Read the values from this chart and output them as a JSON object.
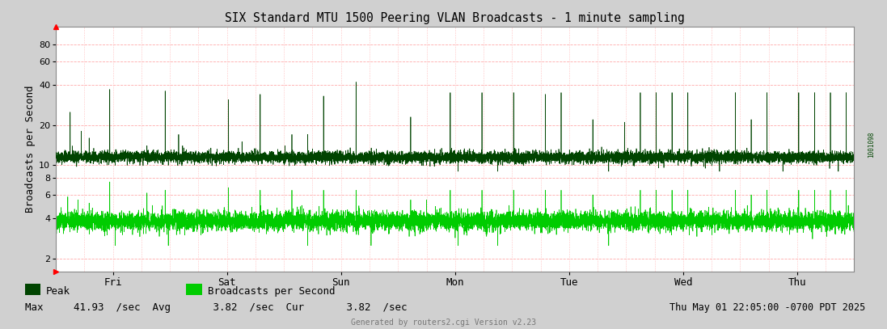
{
  "title": "SIX Standard MTU 1500 Peering VLAN Broadcasts - 1 minute sampling",
  "ylabel": "Broadcasts per Second",
  "fig_bg": "#d0d0d0",
  "plot_bg": "#ffffff",
  "peak_color": "#004400",
  "bcast_color": "#00cc00",
  "grid_color": "#ffaaaa",
  "ytick_vals": [
    2,
    4,
    6,
    8,
    10,
    20,
    40,
    60,
    80
  ],
  "ymin": 1.6,
  "ymax": 110,
  "xtick_labels": [
    "Fri",
    "Sat",
    "Sun",
    "Mon",
    "Tue",
    "Wed",
    "Thu"
  ],
  "legend_peak_color": "#004400",
  "legend_bcast_color": "#00cc00",
  "legend_peak_label": "Peak",
  "legend_bcast_label": "Broadcasts per Second",
  "max_val": "41.93",
  "avg_val": "3.82",
  "cur_val": "3.82",
  "timestamp": "Thu May 01 22:05:00 -0700 PDT 2025",
  "footer": "Generated by routers2.cgi Version v2.23",
  "right_text": "1001098",
  "n_points": 10080,
  "baseline_peak": 11.5,
  "baseline_bcast": 3.82,
  "peak_noise_sigma": 0.05,
  "bcast_noise_sigma": 0.08
}
